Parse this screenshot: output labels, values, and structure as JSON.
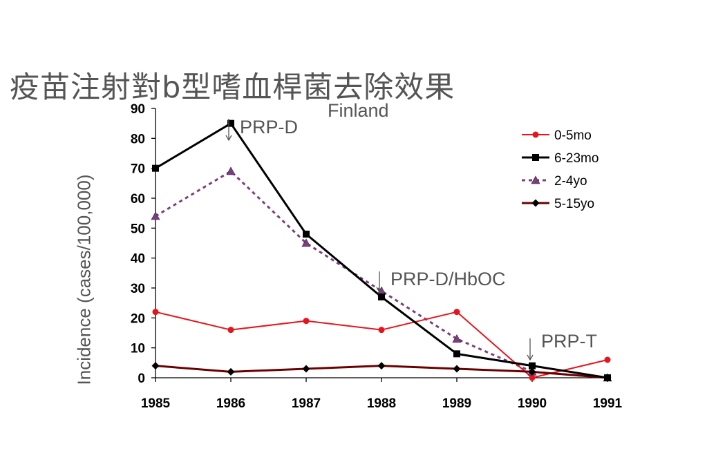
{
  "title": "疫苗注射對b型嗜血桿菌去除效果",
  "chart_data": {
    "type": "line",
    "subtitle": "Finland",
    "ylabel": "Incidence (cases/100,000)",
    "xlabel": "",
    "x": [
      "1985",
      "1986",
      "1987",
      "1988",
      "1989",
      "1990",
      "1991"
    ],
    "ylim": [
      0,
      90
    ],
    "yticks": [
      0,
      10,
      20,
      30,
      40,
      50,
      60,
      70,
      80,
      90
    ],
    "grid": false,
    "legend_position": "top-right",
    "series": [
      {
        "name": "0-5mo",
        "values": [
          22,
          16,
          19,
          16,
          22,
          0,
          6
        ],
        "color": "#e8141b",
        "marker": "circle",
        "dash": false,
        "width": 2
      },
      {
        "name": "6-23mo",
        "values": [
          70,
          85,
          48,
          27,
          8,
          4,
          0
        ],
        "color": "#000000",
        "marker": "square",
        "dash": false,
        "width": 3
      },
      {
        "name": "2-4yo",
        "values": [
          54,
          69,
          45,
          29,
          13,
          2,
          0
        ],
        "color": "#7b3f7e",
        "marker": "triangle",
        "dash": true,
        "width": 3
      },
      {
        "name": "5-15yo",
        "values": [
          4,
          2,
          3,
          4,
          3,
          2,
          0
        ],
        "color": "#6b0000",
        "marker": "diamond",
        "dash": false,
        "width": 3
      }
    ],
    "annotations": [
      {
        "text": "PRP-D",
        "x": "1986"
      },
      {
        "text": "PRP-D/HbOC",
        "x": "1988"
      },
      {
        "text": "PRP-T",
        "x": "1990"
      }
    ]
  }
}
